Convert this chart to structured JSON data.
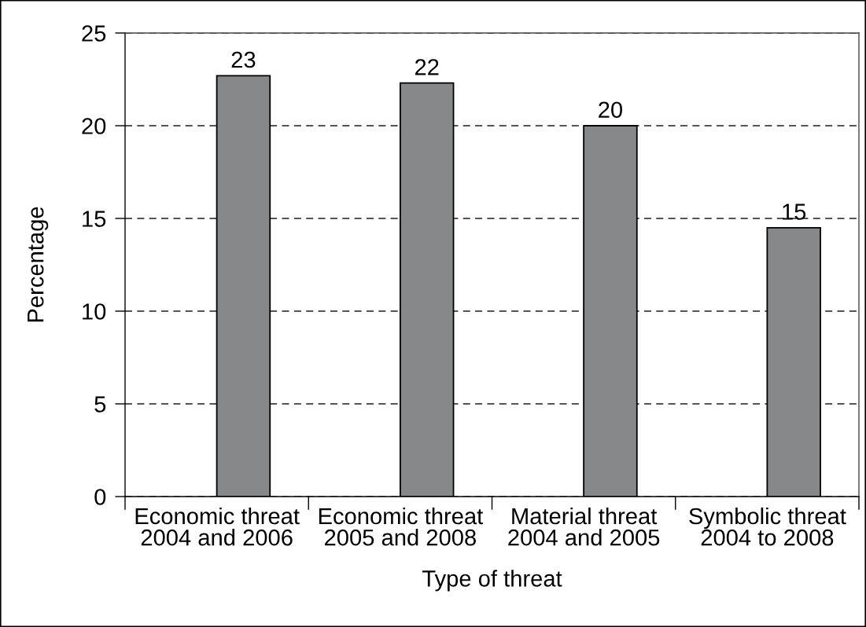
{
  "chart_data": {
    "type": "bar",
    "xlabel": "Type of threat",
    "ylabel": "Percentage",
    "categories": [
      "Economic threat\n2004 and 2006",
      "Economic threat\n2005 and 2008",
      "Material threat\n2004 and 2005",
      "Symbolic threat\n2004 to 2008"
    ],
    "values": [
      22.7,
      22.3,
      20.0,
      14.5
    ],
    "value_labels": [
      "23",
      "22",
      "20",
      "15"
    ],
    "color": "#87888a",
    "ylim": [
      0,
      25
    ],
    "yticks": [
      0,
      5,
      10,
      15,
      20,
      25
    ],
    "grid": "y"
  }
}
